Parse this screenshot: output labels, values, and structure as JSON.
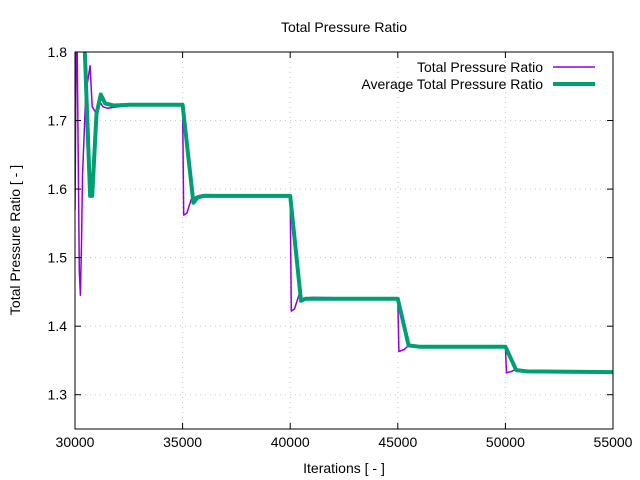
{
  "chart_data": {
    "type": "line",
    "title": "Total Pressure Ratio",
    "xlabel": "Iterations [ - ]",
    "ylabel": "Total Pressure Ratio [ - ]",
    "xlim": [
      30000,
      55000
    ],
    "ylim": [
      1.25,
      1.8
    ],
    "xticks": [
      30000,
      35000,
      40000,
      45000,
      50000,
      55000
    ],
    "yticks": [
      1.3,
      1.4,
      1.5,
      1.6,
      1.7,
      1.8
    ],
    "grid": true,
    "legend_position": "top-right",
    "series": [
      {
        "name": "Total Pressure Ratio",
        "color": "#9400d3",
        "x": [
          30000,
          30050,
          30100,
          30150,
          30200,
          30250,
          30300,
          30350,
          30500,
          30700,
          30800,
          31000,
          31100,
          31300,
          31500,
          32000,
          33000,
          35000,
          35050,
          35200,
          35400,
          35700,
          36000,
          40000,
          40050,
          40200,
          40400,
          40600,
          41000,
          45000,
          45050,
          45300,
          45500,
          46000,
          50000,
          50050,
          50300,
          50500,
          51000,
          55000
        ],
        "y": [
          1.57,
          1.8,
          1.8,
          1.65,
          1.48,
          1.445,
          1.52,
          1.62,
          1.74,
          1.78,
          1.72,
          1.71,
          1.73,
          1.72,
          1.718,
          1.72,
          1.723,
          1.723,
          1.562,
          1.565,
          1.585,
          1.59,
          1.592,
          1.59,
          1.422,
          1.425,
          1.445,
          1.44,
          1.442,
          1.44,
          1.363,
          1.366,
          1.372,
          1.37,
          1.37,
          1.332,
          1.334,
          1.338,
          1.334,
          1.333
        ]
      },
      {
        "name": "Average Total Pressure Ratio",
        "color": "#009e73",
        "x": [
          30400,
          30700,
          30800,
          31000,
          31200,
          31400,
          31800,
          32500,
          35000,
          35500,
          35700,
          36000,
          40000,
          40500,
          40700,
          45000,
          45500,
          46000,
          50000,
          50500,
          51000,
          55000
        ],
        "y": [
          1.85,
          1.59,
          1.59,
          1.71,
          1.738,
          1.725,
          1.722,
          1.723,
          1.723,
          1.58,
          1.588,
          1.59,
          1.59,
          1.437,
          1.44,
          1.44,
          1.372,
          1.37,
          1.37,
          1.336,
          1.334,
          1.333
        ]
      }
    ]
  }
}
